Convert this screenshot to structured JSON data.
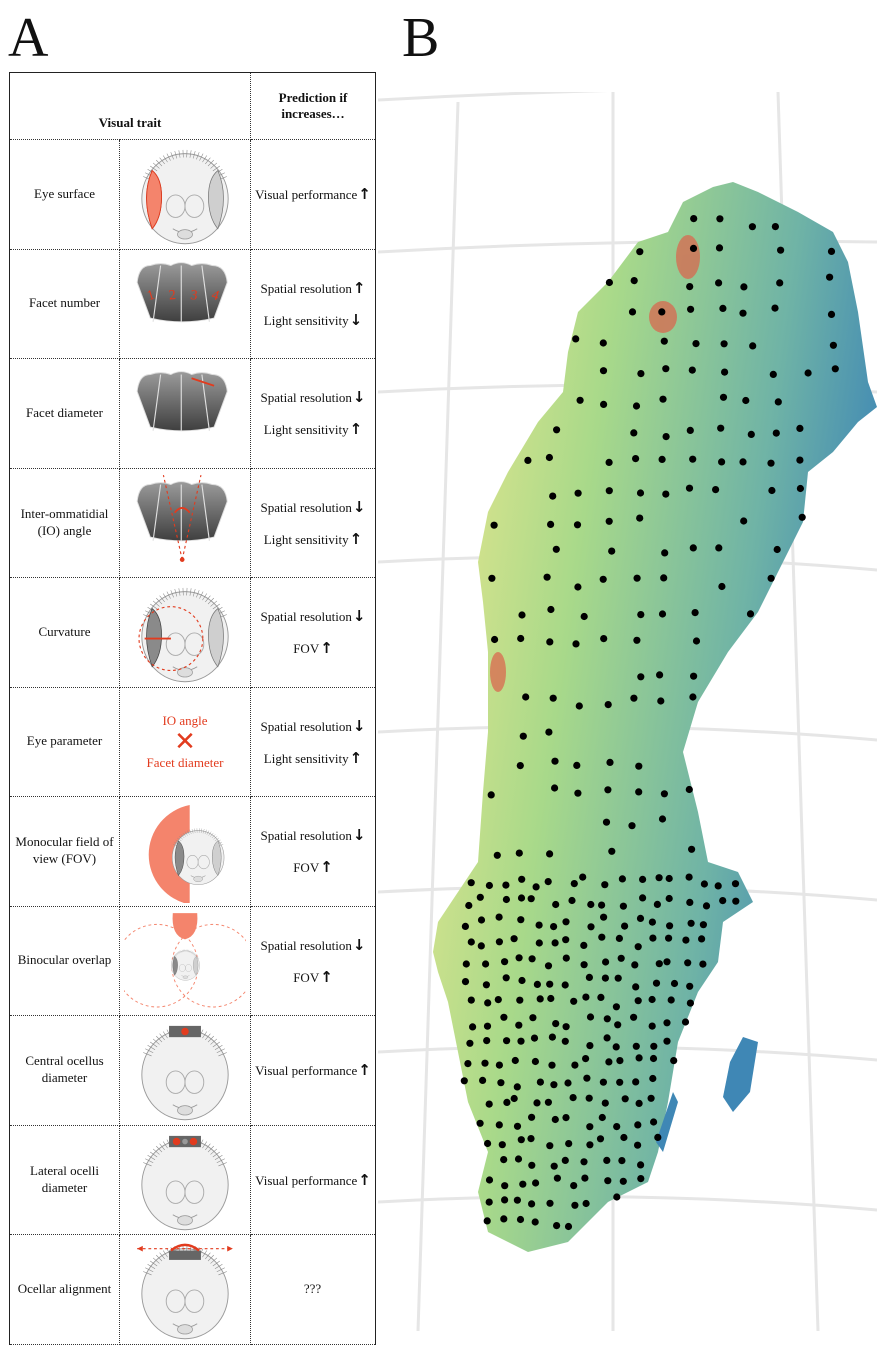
{
  "panels": {
    "a": "A",
    "b": "B"
  },
  "table": {
    "header_trait": "Visual trait",
    "header_prediction": "Prediction if increases…",
    "rows": [
      {
        "trait": "Eye surface",
        "preds": [
          {
            "text": "Visual performance",
            "dir": "↑"
          }
        ]
      },
      {
        "trait": "Facet number",
        "preds": [
          {
            "text": "Spatial resolution",
            "dir": "↑"
          },
          {
            "text": "Light sensitivity",
            "dir": "↓"
          }
        ],
        "facet_labels": [
          "1",
          "2",
          "3",
          "4"
        ]
      },
      {
        "trait": "Facet diameter",
        "preds": [
          {
            "text": "Spatial resolution",
            "dir": "↓"
          },
          {
            "text": "Light sensitivity",
            "dir": "↑"
          }
        ]
      },
      {
        "trait": "Inter-ommatidial (IO) angle",
        "preds": [
          {
            "text": "Spatial resolution",
            "dir": "↓"
          },
          {
            "text": "Light sensitivity",
            "dir": "↑"
          }
        ]
      },
      {
        "trait": "Curvature",
        "preds": [
          {
            "text": "Spatial resolution",
            "dir": "↓"
          },
          {
            "text": "FOV",
            "dir": "↑"
          }
        ]
      },
      {
        "trait": "Eye parameter",
        "preds": [
          {
            "text": "Spatial resolution",
            "dir": "↓"
          },
          {
            "text": "Light sensitivity",
            "dir": "↑"
          }
        ],
        "formula": {
          "top": "IO angle",
          "op": "✕",
          "bottom": "Facet diameter"
        }
      },
      {
        "trait": "Monocular field of view (FOV)",
        "preds": [
          {
            "text": "Spatial resolution",
            "dir": "↓"
          },
          {
            "text": "FOV",
            "dir": "↑"
          }
        ]
      },
      {
        "trait": "Binocular overlap",
        "preds": [
          {
            "text": "Spatial resolution",
            "dir": "↓"
          },
          {
            "text": "FOV",
            "dir": "↑"
          }
        ]
      },
      {
        "trait": "Central ocellus diameter",
        "preds": [
          {
            "text": "Visual performance",
            "dir": "↑"
          }
        ]
      },
      {
        "trait": "Lateral ocelli diameter",
        "preds": [
          {
            "text": "Visual performance",
            "dir": "↑"
          }
        ]
      },
      {
        "trait": "Ocellar alignment",
        "preds": [
          {
            "text": "???",
            "dir": ""
          }
        ]
      }
    ]
  },
  "colors": {
    "accent": "#e23b1e",
    "salmon": "#f4846c",
    "map_low": "#3f87b5",
    "map_mid": "#a8d98a",
    "map_high": "#f3e98e",
    "map_peak": "#d9684f",
    "dot": "#000000",
    "grid": "#e6e6e6"
  },
  "icons": [
    "bee-head-icon",
    "facets-icon",
    "arrow-up-icon",
    "arrow-down-icon"
  ]
}
